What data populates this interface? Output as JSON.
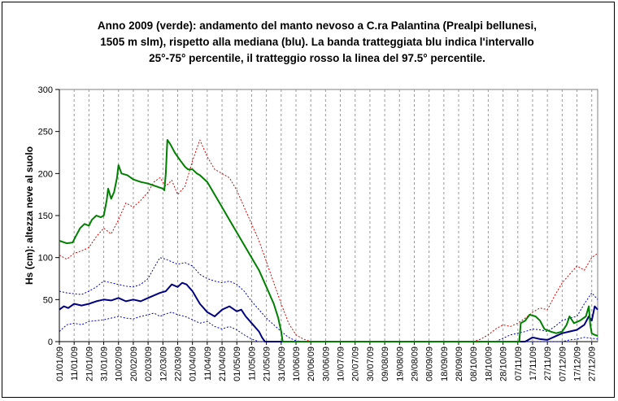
{
  "chart_data": {
    "type": "line",
    "title_lines": [
      "Anno 2009 (verde): andamento del manto nevoso a C.ra Palantina (Prealpi bellunesi,",
      "1505 m slm), rispetto alla mediana (blu). La banda tratteggiata blu indica l'intervallo",
      "25°-75° percentile, il tratteggio rosso la linea del 97.5° percentile."
    ],
    "ylabel": "Hs (cm): altezza neve al suolo",
    "ylim": [
      0,
      300
    ],
    "y_ticks": [
      0,
      50,
      100,
      150,
      200,
      250,
      300
    ],
    "x_tick_labels": [
      "01/01/09",
      "11/01/09",
      "21/01/09",
      "31/01/09",
      "10/02/09",
      "20/02/09",
      "02/03/09",
      "12/03/09",
      "22/03/09",
      "01/04/09",
      "11/04/09",
      "21/04/09",
      "01/05/09",
      "11/05/09",
      "21/05/09",
      "31/05/09",
      "10/06/09",
      "20/06/09",
      "30/06/09",
      "10/07/09",
      "20/07/09",
      "30/07/09",
      "09/08/09",
      "19/08/09",
      "29/08/09",
      "08/09/09",
      "18/09/09",
      "28/09/09",
      "08/10/09",
      "18/10/09",
      "28/10/09",
      "07/11/09",
      "17/11/09",
      "27/11/09",
      "07/12/09",
      "17/12/09",
      "27/12/09"
    ],
    "x_range_days": [
      0,
      364
    ],
    "grid": "vertical dashed",
    "series": [
      {
        "key": "p975",
        "color": "#e00000",
        "dash": "dotted",
        "points": [
          [
            0,
            103
          ],
          [
            5,
            98
          ],
          [
            10,
            105
          ],
          [
            15,
            108
          ],
          [
            20,
            112
          ],
          [
            25,
            125
          ],
          [
            30,
            135
          ],
          [
            35,
            128
          ],
          [
            40,
            145
          ],
          [
            45,
            165
          ],
          [
            50,
            160
          ],
          [
            55,
            168
          ],
          [
            60,
            178
          ],
          [
            64,
            190
          ],
          [
            68,
            195
          ],
          [
            72,
            185
          ],
          [
            76,
            192
          ],
          [
            80,
            175
          ],
          [
            85,
            185
          ],
          [
            90,
            215
          ],
          [
            95,
            240
          ],
          [
            100,
            220
          ],
          [
            105,
            205
          ],
          [
            110,
            200
          ],
          [
            115,
            195
          ],
          [
            120,
            180
          ],
          [
            125,
            160
          ],
          [
            130,
            140
          ],
          [
            135,
            120
          ],
          [
            140,
            95
          ],
          [
            145,
            70
          ],
          [
            150,
            45
          ],
          [
            155,
            22
          ],
          [
            160,
            8
          ],
          [
            165,
            3
          ],
          [
            170,
            0
          ],
          [
            280,
            0
          ],
          [
            285,
            3
          ],
          [
            290,
            8
          ],
          [
            295,
            15
          ],
          [
            300,
            20
          ],
          [
            305,
            18
          ],
          [
            310,
            22
          ],
          [
            315,
            28
          ],
          [
            320,
            35
          ],
          [
            325,
            40
          ],
          [
            330,
            38
          ],
          [
            335,
            55
          ],
          [
            340,
            70
          ],
          [
            345,
            80
          ],
          [
            350,
            90
          ],
          [
            355,
            85
          ],
          [
            360,
            100
          ],
          [
            364,
            105
          ]
        ]
      },
      {
        "key": "p75",
        "color": "#0000cc",
        "dash": "dotted",
        "points": [
          [
            0,
            60
          ],
          [
            5,
            58
          ],
          [
            10,
            57
          ],
          [
            15,
            56
          ],
          [
            20,
            60
          ],
          [
            25,
            65
          ],
          [
            30,
            72
          ],
          [
            35,
            70
          ],
          [
            40,
            68
          ],
          [
            45,
            66
          ],
          [
            50,
            65
          ],
          [
            55,
            68
          ],
          [
            60,
            75
          ],
          [
            64,
            88
          ],
          [
            68,
            100
          ],
          [
            72,
            98
          ],
          [
            76,
            95
          ],
          [
            80,
            92
          ],
          [
            85,
            94
          ],
          [
            90,
            90
          ],
          [
            95,
            80
          ],
          [
            100,
            75
          ],
          [
            105,
            72
          ],
          [
            110,
            70
          ],
          [
            115,
            72
          ],
          [
            120,
            68
          ],
          [
            125,
            60
          ],
          [
            130,
            48
          ],
          [
            135,
            38
          ],
          [
            140,
            28
          ],
          [
            145,
            20
          ],
          [
            150,
            12
          ],
          [
            155,
            5
          ],
          [
            160,
            1
          ],
          [
            165,
            0
          ],
          [
            295,
            0
          ],
          [
            305,
            8
          ],
          [
            310,
            10
          ],
          [
            315,
            12
          ],
          [
            320,
            15
          ],
          [
            325,
            14
          ],
          [
            330,
            12
          ],
          [
            335,
            18
          ],
          [
            340,
            25
          ],
          [
            345,
            28
          ],
          [
            350,
            30
          ],
          [
            355,
            45
          ],
          [
            360,
            58
          ],
          [
            364,
            50
          ]
        ]
      },
      {
        "key": "p25",
        "color": "#0000cc",
        "dash": "dotted",
        "points": [
          [
            0,
            12
          ],
          [
            5,
            20
          ],
          [
            10,
            22
          ],
          [
            15,
            20
          ],
          [
            20,
            24
          ],
          [
            25,
            25
          ],
          [
            30,
            26
          ],
          [
            35,
            28
          ],
          [
            40,
            30
          ],
          [
            45,
            28
          ],
          [
            50,
            27
          ],
          [
            55,
            30
          ],
          [
            60,
            32
          ],
          [
            64,
            34
          ],
          [
            68,
            30
          ],
          [
            72,
            33
          ],
          [
            76,
            35
          ],
          [
            80,
            32
          ],
          [
            85,
            30
          ],
          [
            90,
            26
          ],
          [
            95,
            22
          ],
          [
            100,
            24
          ],
          [
            105,
            18
          ],
          [
            110,
            15
          ],
          [
            115,
            18
          ],
          [
            120,
            14
          ],
          [
            125,
            8
          ],
          [
            130,
            3
          ],
          [
            135,
            0
          ],
          [
            295,
            0
          ],
          [
            340,
            0
          ],
          [
            345,
            2
          ],
          [
            350,
            3
          ],
          [
            355,
            5
          ],
          [
            360,
            4
          ],
          [
            364,
            3
          ]
        ]
      },
      {
        "key": "median",
        "color": "#000080",
        "dash": "solid",
        "width": 2,
        "points": [
          [
            0,
            38
          ],
          [
            3,
            42
          ],
          [
            6,
            40
          ],
          [
            10,
            45
          ],
          [
            15,
            43
          ],
          [
            20,
            45
          ],
          [
            25,
            48
          ],
          [
            30,
            50
          ],
          [
            35,
            49
          ],
          [
            40,
            52
          ],
          [
            45,
            48
          ],
          [
            50,
            50
          ],
          [
            55,
            48
          ],
          [
            60,
            52
          ],
          [
            64,
            55
          ],
          [
            68,
            58
          ],
          [
            72,
            60
          ],
          [
            76,
            68
          ],
          [
            80,
            65
          ],
          [
            83,
            70
          ],
          [
            86,
            68
          ],
          [
            90,
            60
          ],
          [
            95,
            45
          ],
          [
            100,
            35
          ],
          [
            105,
            30
          ],
          [
            110,
            38
          ],
          [
            115,
            42
          ],
          [
            120,
            36
          ],
          [
            123,
            38
          ],
          [
            126,
            30
          ],
          [
            129,
            24
          ],
          [
            132,
            18
          ],
          [
            135,
            12
          ],
          [
            137,
            5
          ],
          [
            139,
            0
          ],
          [
            315,
            0
          ],
          [
            320,
            5
          ],
          [
            325,
            3
          ],
          [
            330,
            2
          ],
          [
            335,
            6
          ],
          [
            340,
            10
          ],
          [
            345,
            12
          ],
          [
            350,
            14
          ],
          [
            355,
            20
          ],
          [
            358,
            30
          ],
          [
            360,
            25
          ],
          [
            362,
            42
          ],
          [
            364,
            38
          ]
        ]
      },
      {
        "key": "2009",
        "color": "#008000",
        "dash": "solid",
        "width": 2,
        "points": [
          [
            0,
            120
          ],
          [
            5,
            117
          ],
          [
            9,
            118
          ],
          [
            11,
            125
          ],
          [
            14,
            135
          ],
          [
            17,
            140
          ],
          [
            20,
            138
          ],
          [
            22,
            145
          ],
          [
            25,
            150
          ],
          [
            28,
            148
          ],
          [
            30,
            150
          ],
          [
            32,
            168
          ],
          [
            33,
            182
          ],
          [
            35,
            170
          ],
          [
            37,
            178
          ],
          [
            39,
            195
          ],
          [
            40,
            210
          ],
          [
            42,
            200
          ],
          [
            46,
            198
          ],
          [
            50,
            193
          ],
          [
            55,
            190
          ],
          [
            60,
            188
          ],
          [
            65,
            185
          ],
          [
            70,
            182
          ],
          [
            71,
            180
          ],
          [
            72,
            200
          ],
          [
            73,
            240
          ],
          [
            75,
            235
          ],
          [
            78,
            225
          ],
          [
            80,
            220
          ],
          [
            82,
            215
          ],
          [
            85,
            208
          ],
          [
            87,
            205
          ],
          [
            90,
            205
          ],
          [
            93,
            200
          ],
          [
            95,
            198
          ],
          [
            100,
            190
          ],
          [
            105,
            175
          ],
          [
            110,
            160
          ],
          [
            115,
            145
          ],
          [
            120,
            130
          ],
          [
            125,
            115
          ],
          [
            130,
            100
          ],
          [
            135,
            85
          ],
          [
            140,
            65
          ],
          [
            145,
            45
          ],
          [
            148,
            28
          ],
          [
            150,
            12
          ],
          [
            151,
            0
          ],
          [
            311,
            0
          ],
          [
            312,
            22
          ],
          [
            315,
            25
          ],
          [
            318,
            32
          ],
          [
            322,
            30
          ],
          [
            325,
            25
          ],
          [
            328,
            15
          ],
          [
            332,
            12
          ],
          [
            336,
            10
          ],
          [
            340,
            12
          ],
          [
            343,
            20
          ],
          [
            345,
            30
          ],
          [
            348,
            22
          ],
          [
            352,
            25
          ],
          [
            356,
            30
          ],
          [
            358,
            42
          ],
          [
            359,
            20
          ],
          [
            360,
            10
          ],
          [
            362,
            8
          ],
          [
            364,
            7
          ]
        ]
      }
    ]
  }
}
